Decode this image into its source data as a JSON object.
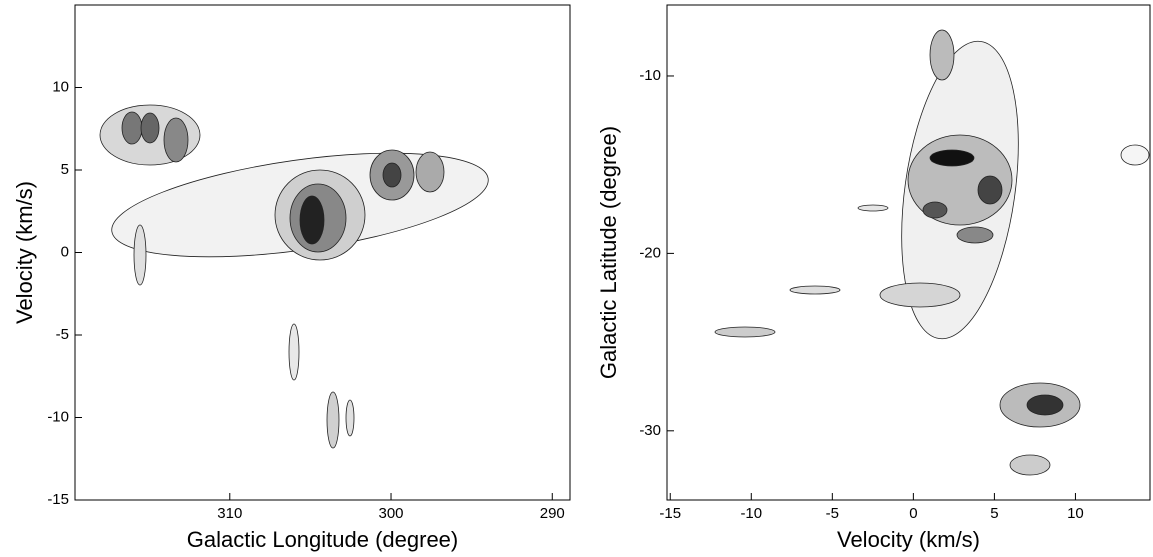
{
  "chart_data": [
    {
      "type": "contour",
      "xlabel": "Galactic Longitude (degree)",
      "ylabel": "Velocity (km/s)",
      "xlim": [
        319.6,
        288.9
      ],
      "xticks": [
        310,
        300,
        290
      ],
      "ylim": [
        -15,
        15
      ],
      "yticks": [
        -15,
        -10,
        -5,
        0,
        5,
        10
      ]
    },
    {
      "type": "contour",
      "xlabel": "Velocity (km/s)",
      "ylabel": "Galactic Latitude (degree)",
      "xlim": [
        -15.2,
        14.6
      ],
      "xticks": [
        -15,
        -10,
        -5,
        0,
        5,
        10
      ],
      "ylim": [
        -33.9,
        -6
      ],
      "yticks": [
        -30,
        -20,
        -10
      ]
    }
  ]
}
